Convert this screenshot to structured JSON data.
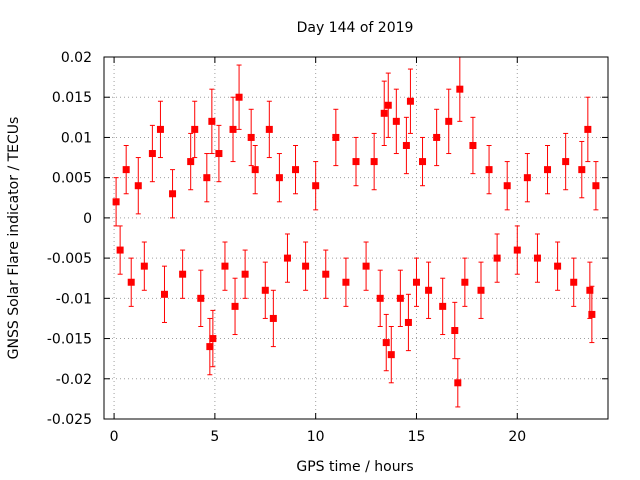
{
  "chart_data": {
    "type": "scatter",
    "title": "Day 144 of 2019",
    "xlabel": "GPS time / hours",
    "ylabel": "GNSS Solar Flare indicator / TECUs",
    "xlim": [
      -0.5,
      24.5
    ],
    "ylim": [
      -0.025,
      0.02
    ],
    "xticks": [
      0,
      5,
      10,
      15,
      20
    ],
    "xtick_labels": [
      "0",
      "5",
      "10",
      "15",
      "20"
    ],
    "yticks": [
      0.02,
      0.015,
      0.01,
      0.005,
      0,
      -0.005,
      -0.01,
      -0.015,
      -0.02,
      -0.025
    ],
    "ytick_labels": [
      "0.02",
      "0.015",
      "0.01",
      "0.005",
      "0",
      "-0.005",
      "-0.01",
      "-0.015",
      "-0.02",
      "-0.025"
    ],
    "grid": true,
    "marker": "filled-square",
    "color": "#ff0000",
    "error_bars": true,
    "series": [
      {
        "name": "solar-flare-indicator",
        "points": [
          {
            "x": 0.1,
            "y": 0.002,
            "err": 0.003
          },
          {
            "x": 0.3,
            "y": -0.004,
            "err": 0.003
          },
          {
            "x": 0.6,
            "y": 0.006,
            "err": 0.003
          },
          {
            "x": 0.85,
            "y": -0.008,
            "err": 0.003
          },
          {
            "x": 1.2,
            "y": 0.004,
            "err": 0.0035
          },
          {
            "x": 1.5,
            "y": -0.006,
            "err": 0.003
          },
          {
            "x": 1.9,
            "y": 0.008,
            "err": 0.0035
          },
          {
            "x": 2.3,
            "y": 0.011,
            "err": 0.0035
          },
          {
            "x": 2.5,
            "y": -0.0095,
            "err": 0.0035
          },
          {
            "x": 2.9,
            "y": 0.003,
            "err": 0.003
          },
          {
            "x": 3.4,
            "y": -0.007,
            "err": 0.003
          },
          {
            "x": 3.8,
            "y": 0.007,
            "err": 0.0035
          },
          {
            "x": 4.0,
            "y": 0.011,
            "err": 0.0035
          },
          {
            "x": 4.3,
            "y": -0.01,
            "err": 0.0035
          },
          {
            "x": 4.6,
            "y": 0.005,
            "err": 0.003
          },
          {
            "x": 4.75,
            "y": -0.016,
            "err": 0.0035
          },
          {
            "x": 4.85,
            "y": 0.012,
            "err": 0.004
          },
          {
            "x": 4.9,
            "y": -0.015,
            "err": 0.0035
          },
          {
            "x": 5.2,
            "y": 0.008,
            "err": 0.0035
          },
          {
            "x": 5.5,
            "y": -0.006,
            "err": 0.003
          },
          {
            "x": 5.9,
            "y": 0.011,
            "err": 0.004
          },
          {
            "x": 6.0,
            "y": -0.011,
            "err": 0.0035
          },
          {
            "x": 6.2,
            "y": 0.015,
            "err": 0.004
          },
          {
            "x": 6.5,
            "y": -0.007,
            "err": 0.003
          },
          {
            "x": 6.8,
            "y": 0.01,
            "err": 0.0035
          },
          {
            "x": 7.0,
            "y": 0.006,
            "err": 0.003
          },
          {
            "x": 7.5,
            "y": -0.009,
            "err": 0.0035
          },
          {
            "x": 7.7,
            "y": 0.011,
            "err": 0.0035
          },
          {
            "x": 7.9,
            "y": -0.0125,
            "err": 0.0035
          },
          {
            "x": 8.2,
            "y": 0.005,
            "err": 0.003
          },
          {
            "x": 8.6,
            "y": -0.005,
            "err": 0.003
          },
          {
            "x": 9.0,
            "y": 0.006,
            "err": 0.003
          },
          {
            "x": 9.5,
            "y": -0.006,
            "err": 0.003
          },
          {
            "x": 10.0,
            "y": 0.004,
            "err": 0.003
          },
          {
            "x": 10.5,
            "y": -0.007,
            "err": 0.003
          },
          {
            "x": 11.0,
            "y": 0.01,
            "err": 0.0035
          },
          {
            "x": 11.5,
            "y": -0.008,
            "err": 0.003
          },
          {
            "x": 12.0,
            "y": 0.007,
            "err": 0.003
          },
          {
            "x": 12.5,
            "y": -0.006,
            "err": 0.003
          },
          {
            "x": 12.9,
            "y": 0.007,
            "err": 0.0035
          },
          {
            "x": 13.2,
            "y": -0.01,
            "err": 0.0035
          },
          {
            "x": 13.4,
            "y": 0.013,
            "err": 0.004
          },
          {
            "x": 13.5,
            "y": -0.0155,
            "err": 0.0035
          },
          {
            "x": 13.6,
            "y": 0.014,
            "err": 0.004
          },
          {
            "x": 13.75,
            "y": -0.017,
            "err": 0.0035
          },
          {
            "x": 14.0,
            "y": 0.012,
            "err": 0.004
          },
          {
            "x": 14.2,
            "y": -0.01,
            "err": 0.0035
          },
          {
            "x": 14.5,
            "y": 0.009,
            "err": 0.0035
          },
          {
            "x": 14.6,
            "y": -0.013,
            "err": 0.0035
          },
          {
            "x": 14.7,
            "y": 0.0145,
            "err": 0.004
          },
          {
            "x": 15.0,
            "y": -0.008,
            "err": 0.003
          },
          {
            "x": 15.3,
            "y": 0.007,
            "err": 0.003
          },
          {
            "x": 15.6,
            "y": -0.009,
            "err": 0.0035
          },
          {
            "x": 16.0,
            "y": 0.01,
            "err": 0.0035
          },
          {
            "x": 16.3,
            "y": -0.011,
            "err": 0.0035
          },
          {
            "x": 16.6,
            "y": 0.012,
            "err": 0.004
          },
          {
            "x": 16.9,
            "y": -0.014,
            "err": 0.0035
          },
          {
            "x": 17.05,
            "y": -0.0205,
            "err": 0.003
          },
          {
            "x": 17.15,
            "y": 0.016,
            "err": 0.004
          },
          {
            "x": 17.4,
            "y": -0.008,
            "err": 0.003
          },
          {
            "x": 17.8,
            "y": 0.009,
            "err": 0.0035
          },
          {
            "x": 18.2,
            "y": -0.009,
            "err": 0.0035
          },
          {
            "x": 18.6,
            "y": 0.006,
            "err": 0.003
          },
          {
            "x": 19.0,
            "y": -0.005,
            "err": 0.003
          },
          {
            "x": 19.5,
            "y": 0.004,
            "err": 0.003
          },
          {
            "x": 20.0,
            "y": -0.004,
            "err": 0.003
          },
          {
            "x": 20.5,
            "y": 0.005,
            "err": 0.003
          },
          {
            "x": 21.0,
            "y": -0.005,
            "err": 0.003
          },
          {
            "x": 21.5,
            "y": 0.006,
            "err": 0.003
          },
          {
            "x": 22.0,
            "y": -0.006,
            "err": 0.003
          },
          {
            "x": 22.4,
            "y": 0.007,
            "err": 0.0035
          },
          {
            "x": 22.8,
            "y": -0.008,
            "err": 0.003
          },
          {
            "x": 23.2,
            "y": 0.006,
            "err": 0.0035
          },
          {
            "x": 23.5,
            "y": 0.011,
            "err": 0.004
          },
          {
            "x": 23.6,
            "y": -0.009,
            "err": 0.0035
          },
          {
            "x": 23.7,
            "y": -0.012,
            "err": 0.0035
          },
          {
            "x": 23.9,
            "y": 0.004,
            "err": 0.003
          }
        ]
      }
    ]
  }
}
